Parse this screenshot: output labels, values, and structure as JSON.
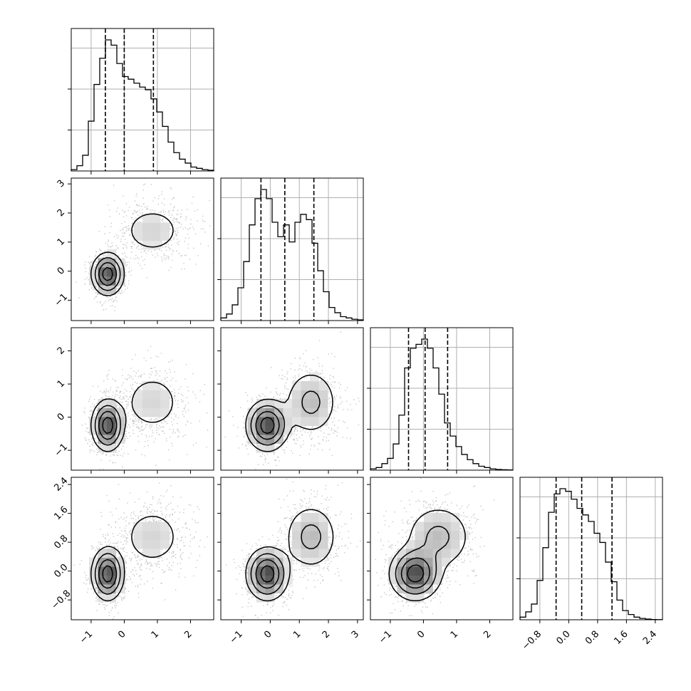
{
  "chart_data": {
    "type": "corner",
    "n_params": 4,
    "grid": true,
    "colors": {
      "line": "#000000",
      "grid": "#b0b0b0",
      "scatter": "#000000",
      "background": "#ffffff"
    },
    "params": [
      {
        "range": [
          -1.6,
          2.7
        ],
        "ticks": [
          -1,
          0,
          1,
          2
        ],
        "tick_labels": [
          "−1",
          "0",
          "1",
          "2"
        ],
        "quantiles": [
          -0.57,
          0.0,
          0.88
        ],
        "hist": [
          0.01,
          0.04,
          0.12,
          0.38,
          0.66,
          0.86,
          1.0,
          0.96,
          0.82,
          0.72,
          0.7,
          0.67,
          0.64,
          0.62,
          0.55,
          0.45,
          0.34,
          0.22,
          0.14,
          0.09,
          0.06,
          0.03,
          0.02,
          0.01,
          0.005
        ]
      },
      {
        "range": [
          -1.7,
          3.2
        ],
        "ticks": [
          -1,
          0,
          1,
          2,
          3
        ],
        "tick_labels": [
          "−1",
          "0",
          "1",
          "2",
          "3"
        ],
        "quantiles": [
          -0.32,
          0.5,
          1.5
        ],
        "hist": [
          0.02,
          0.05,
          0.12,
          0.25,
          0.45,
          0.73,
          0.93,
          1.0,
          0.93,
          0.75,
          0.64,
          0.73,
          0.6,
          0.75,
          0.81,
          0.77,
          0.59,
          0.38,
          0.22,
          0.1,
          0.06,
          0.03,
          0.02,
          0.01,
          0.005
        ]
      },
      {
        "range": [
          -1.6,
          2.7
        ],
        "ticks": [
          -1,
          0,
          1,
          2
        ],
        "tick_labels": [
          "−1",
          "0",
          "1",
          "2"
        ],
        "quantiles": [
          -0.45,
          0.05,
          0.73
        ],
        "hist": [
          0.01,
          0.02,
          0.05,
          0.09,
          0.2,
          0.42,
          0.78,
          0.93,
          0.96,
          1.0,
          0.93,
          0.78,
          0.58,
          0.36,
          0.26,
          0.18,
          0.12,
          0.08,
          0.05,
          0.03,
          0.02,
          0.01,
          0.005,
          0.003,
          0.002
        ]
      },
      {
        "range": [
          -1.35,
          2.6
        ],
        "ticks": [
          -0.8,
          0.0,
          0.8,
          1.6,
          2.4
        ],
        "tick_labels": [
          "−0.8",
          "0.0",
          "0.8",
          "1.6",
          "2.4"
        ],
        "quantiles": [
          -0.35,
          0.36,
          1.2
        ],
        "hist": [
          0.02,
          0.06,
          0.12,
          0.3,
          0.55,
          0.82,
          0.96,
          1.0,
          0.98,
          0.92,
          0.85,
          0.8,
          0.75,
          0.66,
          0.59,
          0.44,
          0.29,
          0.15,
          0.07,
          0.04,
          0.02,
          0.01,
          0.005,
          0.002,
          0.001
        ]
      }
    ],
    "joint": {
      "modes": [
        {
          "weight": 0.58,
          "mean": [
            -0.5,
            -0.1,
            -0.25,
            -0.08
          ],
          "sd": [
            0.24,
            0.36,
            0.38,
            0.36
          ]
        },
        {
          "weight": 0.42,
          "mean": [
            0.85,
            1.4,
            0.45,
            0.95
          ],
          "sd": [
            0.55,
            0.5,
            0.55,
            0.5
          ]
        }
      ]
    }
  }
}
